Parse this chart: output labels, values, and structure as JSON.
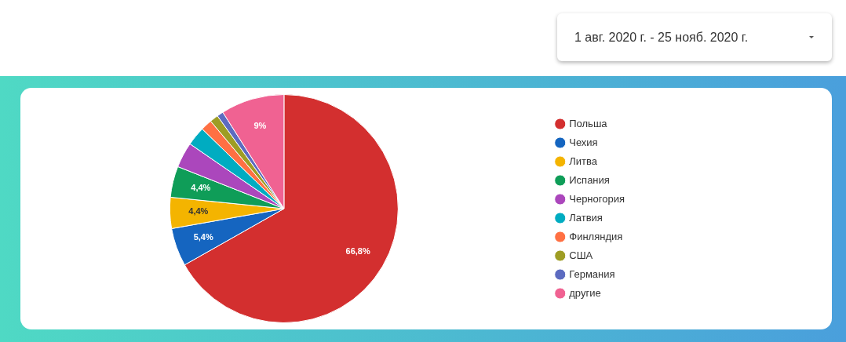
{
  "chart_data": {
    "type": "pie",
    "categories": [
      "Польша",
      "Чехия",
      "Литва",
      "Испания",
      "Черногория",
      "Латвия",
      "Финляндия",
      "США",
      "Германия",
      "другие"
    ],
    "values": [
      66.8,
      5.4,
      4.4,
      4.4,
      3.6,
      2.7,
      1.6,
      1.2,
      0.9,
      9
    ],
    "colors": [
      "#d32f2f",
      "#1565c0",
      "#f4b400",
      "#0f9d58",
      "#ab47bc",
      "#00acc1",
      "#ff7043",
      "#9e9d24",
      "#5c6bc0",
      "#f06292"
    ],
    "value_labels": [
      "66,8%",
      "5,4%",
      "4,4%",
      "4,4%",
      null,
      null,
      null,
      null,
      null,
      "9%"
    ],
    "legend": "right",
    "annotations": [
      "1 авг. 2020 г. - 25 нояб. 2020 г."
    ]
  }
}
